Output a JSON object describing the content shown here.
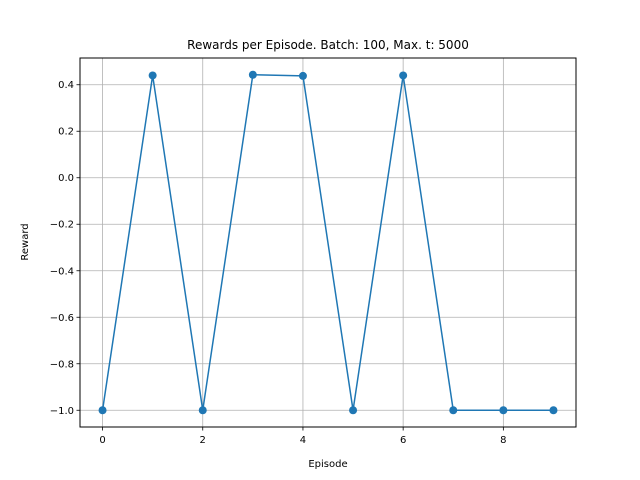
{
  "chart_data": {
    "type": "line",
    "title": "Rewards per Episode. Batch: 100, Max. t: 5000",
    "xlabel": "Episode",
    "ylabel": "Reward",
    "x": [
      0,
      1,
      2,
      3,
      4,
      5,
      6,
      7,
      8,
      9
    ],
    "series": [
      {
        "values": [
          -1.0,
          0.44,
          -1.0,
          0.443,
          0.438,
          -1.0,
          0.44,
          -1.0,
          -1.0,
          -1.0
        ]
      }
    ],
    "xlim": [
      -0.45,
      9.45
    ],
    "ylim": [
      -1.072,
      0.515
    ],
    "xticks": [
      "0",
      "2",
      "4",
      "6",
      "8"
    ],
    "yticks": [
      "−1.0",
      "−0.8",
      "−0.6",
      "−0.4",
      "−0.2",
      "0.0",
      "0.2",
      "0.4"
    ],
    "grid": true,
    "marker": "circle",
    "color": "#1f77b4"
  }
}
